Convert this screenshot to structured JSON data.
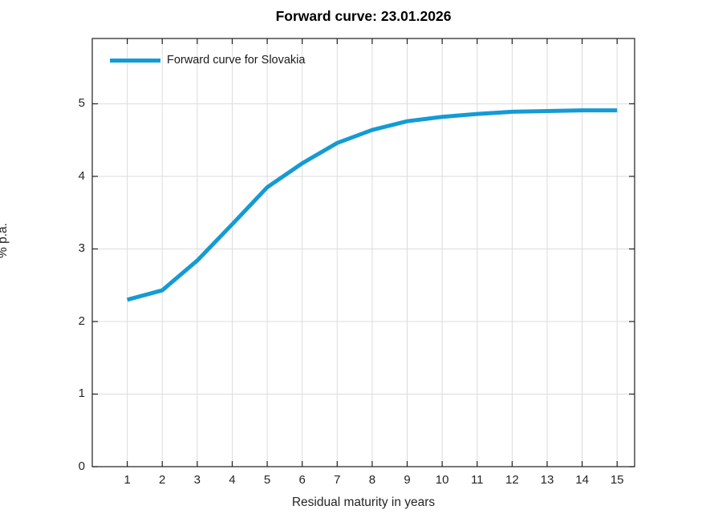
{
  "chart_data": {
    "type": "line",
    "title": "Forward curve: 23.01.2026",
    "xlabel": "Residual maturity in years",
    "ylabel": "% p.a.",
    "legend": [
      "Forward curve for Slovakia"
    ],
    "legend_position": "top-left-inside",
    "x": [
      1,
      2,
      3,
      4,
      5,
      6,
      7,
      8,
      9,
      10,
      11,
      12,
      13,
      14,
      15
    ],
    "series": [
      {
        "name": "Forward curve for Slovakia",
        "values": [
          2.3,
          2.43,
          2.84,
          3.34,
          3.85,
          4.18,
          4.46,
          4.64,
          4.76,
          4.82,
          4.86,
          4.89,
          4.9,
          4.91,
          4.91
        ]
      }
    ],
    "xlim": [
      0,
      15.5
    ],
    "ylim": [
      0,
      5.9
    ],
    "xticks": [
      1,
      2,
      3,
      4,
      5,
      6,
      7,
      8,
      9,
      10,
      11,
      12,
      13,
      14,
      15
    ],
    "yticks": [
      0,
      1,
      2,
      3,
      4,
      5
    ],
    "grid": true,
    "colors": {
      "line": "#149bd4",
      "grid": "#dcdcdc",
      "axis": "#1f1f1f",
      "tick_label": "#252525",
      "title": "#000000",
      "background": "#ffffff"
    }
  }
}
